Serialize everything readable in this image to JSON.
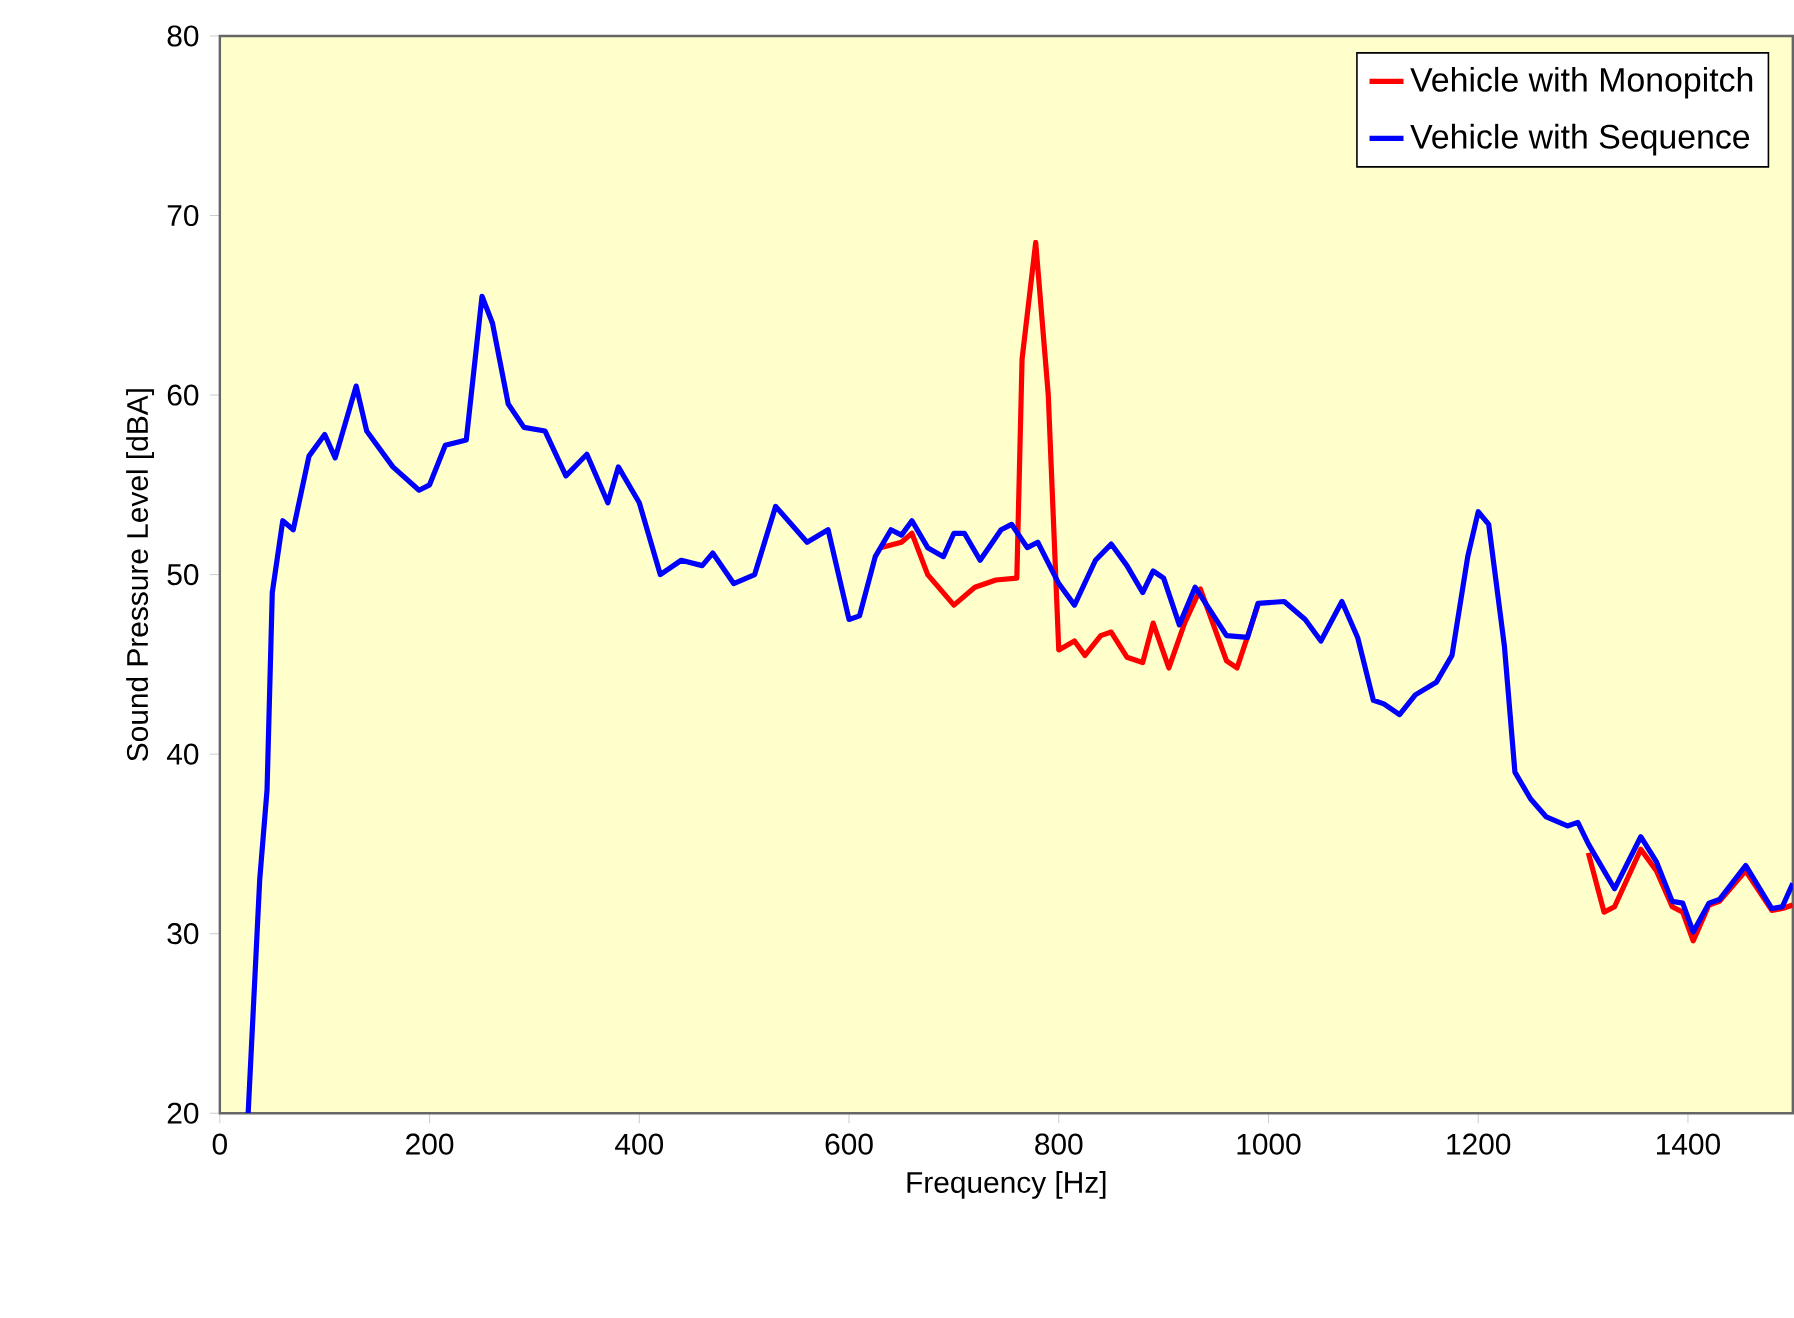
{
  "chart_data": {
    "type": "line",
    "xlabel": "Frequency [Hz]",
    "ylabel": "Sound Pressure Level [dBA]",
    "xlim": [
      0,
      1500
    ],
    "ylim": [
      20,
      80
    ],
    "xticks": [
      0,
      200,
      400,
      600,
      800,
      1000,
      1200,
      1400
    ],
    "yticks": [
      20,
      30,
      40,
      50,
      60,
      70,
      80
    ],
    "legend": "top right",
    "series": [
      {
        "name": "Vehicle with Monopitch",
        "color": "#ff0000",
        "x": [
          630,
          650,
          660,
          675,
          700,
          720,
          740,
          760,
          765,
          778,
          790,
          800,
          815,
          825,
          840,
          850,
          865,
          880,
          890,
          905,
          920,
          935,
          960,
          970,
          990,
          1015,
          1035,
          1050,
          1070,
          1085,
          1100,
          1110,
          1125,
          1140,
          1160,
          1175,
          1190,
          1200,
          1210,
          1225,
          1235,
          1250,
          1265,
          1285,
          1295,
          1305,
          1320,
          1330,
          1355,
          1370,
          1385,
          1395,
          1405,
          1420,
          1430,
          1455,
          1480,
          1490,
          1500
        ],
        "values": [
          51.5,
          51.8,
          52.3,
          50,
          48.3,
          49.3,
          49.7,
          49.8,
          62,
          68.5,
          60,
          45.8,
          46.3,
          45.5,
          46.6,
          46.8,
          45.4,
          45.1,
          47.3,
          44.8,
          47.3,
          49.2,
          45.2,
          44.8,
          48.3,
          null,
          null,
          null,
          null,
          null,
          null,
          null,
          null,
          null,
          null,
          null,
          null,
          null,
          null,
          null,
          null,
          null,
          null,
          null,
          null,
          34.5,
          31.2,
          31.5,
          34.7,
          33.5,
          31.5,
          31.2,
          29.6,
          31.6,
          31.8,
          33.5,
          31.3,
          31.4,
          31.6
        ]
      },
      {
        "name": "Vehicle with Sequence",
        "color": "#0000ff",
        "x": [
          27,
          38,
          45,
          50,
          60,
          70,
          85,
          100,
          110,
          130,
          140,
          165,
          190,
          200,
          215,
          235,
          250,
          260,
          275,
          290,
          310,
          330,
          350,
          370,
          380,
          400,
          420,
          440,
          460,
          470,
          490,
          510,
          530,
          560,
          580,
          600,
          610,
          625,
          640,
          650,
          660,
          675,
          690,
          700,
          710,
          725,
          745,
          755,
          770,
          780,
          800,
          815,
          835,
          850,
          865,
          880,
          890,
          900,
          915,
          930,
          960,
          980,
          990,
          1015,
          1035,
          1050,
          1070,
          1085,
          1100,
          1110,
          1125,
          1140,
          1160,
          1175,
          1190,
          1200,
          1210,
          1225,
          1235,
          1250,
          1265,
          1285,
          1295,
          1305,
          1330,
          1355,
          1370,
          1385,
          1395,
          1405,
          1420,
          1430,
          1455,
          1480,
          1490,
          1500
        ],
        "values": [
          20,
          33,
          38,
          49,
          53,
          52.5,
          56.6,
          57.8,
          56.5,
          60.5,
          58,
          56,
          54.7,
          55,
          57.2,
          57.5,
          65.5,
          64,
          59.5,
          58.2,
          58,
          55.5,
          56.7,
          54,
          56,
          54,
          50,
          50.8,
          50.5,
          51.2,
          49.5,
          50,
          53.8,
          51.8,
          52.5,
          47.5,
          47.7,
          51,
          52.5,
          52.2,
          53,
          51.5,
          51,
          52.3,
          52.3,
          50.8,
          52.5,
          52.8,
          51.5,
          51.8,
          49.5,
          48.3,
          50.8,
          51.7,
          50.5,
          49,
          50.2,
          49.8,
          47.2,
          49.3,
          46.6,
          46.5,
          48.4,
          48.5,
          47.5,
          46.3,
          48.5,
          46.5,
          43,
          42.8,
          42.2,
          43.3,
          44,
          45.5,
          51,
          53.5,
          52.8,
          46,
          39,
          37.5,
          36.5,
          36,
          36.2,
          35,
          32.5,
          35.4,
          34,
          31.8,
          31.7,
          30.1,
          31.7,
          31.9,
          33.8,
          31.4,
          31.5,
          32.8
        ]
      }
    ]
  }
}
